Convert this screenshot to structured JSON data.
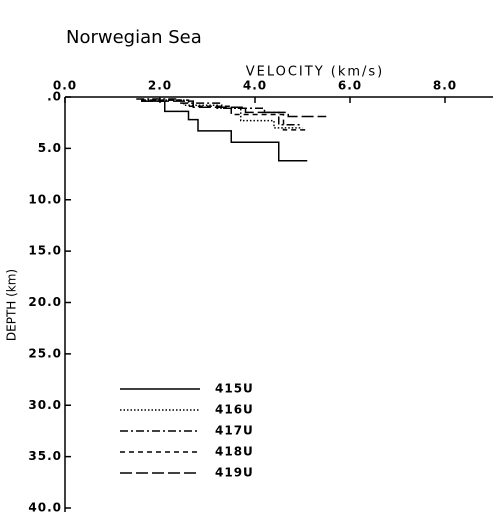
{
  "chart_data": {
    "type": "line",
    "title": "Norwegian Sea",
    "x_label": "VELOCITY (km/s)",
    "y_label": "DEPTH (km)",
    "xlim": [
      0,
      9
    ],
    "xticks": [
      {
        "value": 0,
        "label": "0.0"
      },
      {
        "value": 2,
        "label": "2.0"
      },
      {
        "value": 4,
        "label": "4.0"
      },
      {
        "value": 6,
        "label": "6.0"
      },
      {
        "value": 8,
        "label": "8.0"
      }
    ],
    "ylim": [
      0,
      40
    ],
    "yticks": [
      {
        "value": 0,
        "label": ".0"
      },
      {
        "value": 5,
        "label": "5.0"
      },
      {
        "value": 10,
        "label": "10.0"
      },
      {
        "value": 15,
        "label": "15.0"
      },
      {
        "value": 20,
        "label": "20.0"
      },
      {
        "value": 25,
        "label": "25.0"
      },
      {
        "value": 30,
        "label": "30.0"
      },
      {
        "value": 35,
        "label": "35.0"
      },
      {
        "value": 40,
        "label": "40.0"
      }
    ],
    "y_inverted": true,
    "series": [
      {
        "name": "415U",
        "color": "#000000",
        "dash": "none",
        "x": [
          1.6,
          2.1,
          2.1,
          2.6,
          2.6,
          2.8,
          2.8,
          3.5,
          3.5,
          4.5,
          4.5,
          5.1
        ],
        "values": [
          0.4,
          0.4,
          1.4,
          1.4,
          2.2,
          2.2,
          3.3,
          3.3,
          4.4,
          4.4,
          6.2,
          6.2
        ]
      },
      {
        "name": "416U",
        "color": "#000000",
        "dash": "1.5,2",
        "x": [
          1.6,
          2.5,
          2.5,
          3.2,
          3.2,
          3.7,
          3.7,
          4.4,
          4.4,
          5.0
        ],
        "values": [
          0.3,
          0.3,
          0.8,
          0.8,
          1.1,
          1.1,
          2.3,
          2.3,
          3.0,
          3.0
        ]
      },
      {
        "name": "417U",
        "color": "#000000",
        "dash": "8,3,2,3",
        "x": [
          1.5,
          2.4,
          2.4,
          3.3,
          3.3,
          4.2,
          4.2,
          4.5,
          4.5,
          5.0
        ],
        "values": [
          0.2,
          0.2,
          0.6,
          0.6,
          1.1,
          1.1,
          1.5,
          1.5,
          2.7,
          2.7
        ]
      },
      {
        "name": "418U",
        "color": "#000000",
        "dash": "5,4",
        "x": [
          1.6,
          2.6,
          2.6,
          3.5,
          3.5,
          4.6,
          4.6,
          5.1
        ],
        "values": [
          0.3,
          0.3,
          0.9,
          0.9,
          1.7,
          1.7,
          3.2,
          3.2
        ]
      },
      {
        "name": "419U",
        "color": "#000000",
        "dash": "12,4",
        "x": [
          1.6,
          2.7,
          2.7,
          3.8,
          3.8,
          4.7,
          4.7,
          5.5
        ],
        "values": [
          0.4,
          0.4,
          1.0,
          1.0,
          1.5,
          1.5,
          1.9,
          1.9
        ]
      }
    ]
  }
}
